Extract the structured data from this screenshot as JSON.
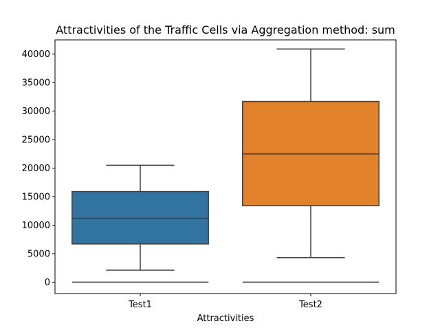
{
  "chart_data": {
    "type": "box",
    "title": "Attractivities of the Traffic Cells via Aggregation method: sum",
    "xlabel": "Attractivities",
    "ylabel": "",
    "ylim": [
      -2000,
      42500
    ],
    "yticks": [
      0,
      5000,
      10000,
      15000,
      20000,
      25000,
      30000,
      35000,
      40000
    ],
    "ytick_labels": [
      "0",
      "5000",
      "10000",
      "15000",
      "20000",
      "25000",
      "30000",
      "35000",
      "40000"
    ],
    "categories": [
      "Test1",
      "Test2"
    ],
    "series": [
      {
        "category": "Test1",
        "whisker_low": 2100,
        "q1": 6700,
        "median": 11200,
        "q3": 15900,
        "whisker_high": 20500,
        "outliers": [
          0
        ],
        "color": "#3274a1"
      },
      {
        "category": "Test2",
        "whisker_low": 4300,
        "q1": 13400,
        "median": 22500,
        "q3": 31700,
        "whisker_high": 40900,
        "outliers": [
          0
        ],
        "color": "#e1812c"
      }
    ],
    "grid": false,
    "legend": "none"
  }
}
